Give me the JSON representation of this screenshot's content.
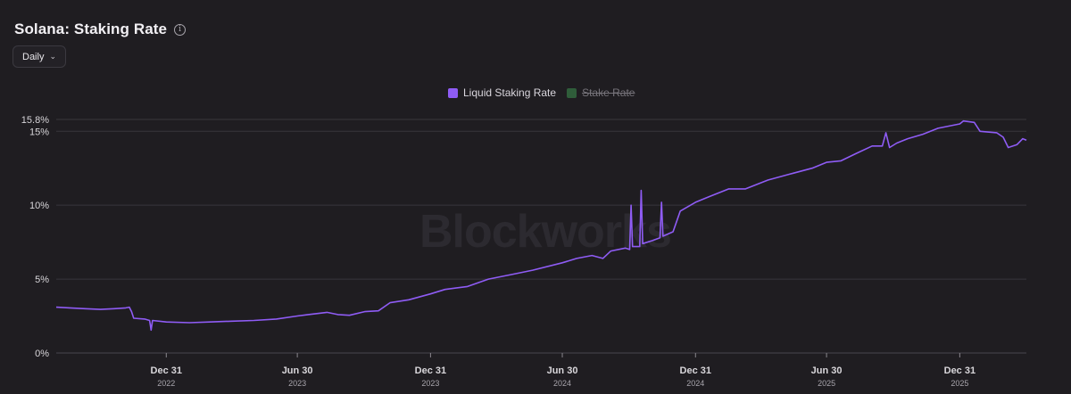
{
  "header": {
    "title": "Solana: Staking Rate",
    "info_icon": "info-circle-icon"
  },
  "controls": {
    "interval_label": "Daily",
    "interval_icon": "chevron-down-icon"
  },
  "watermark": "Blockworks",
  "colors": {
    "background": "#1f1d21",
    "liquid": "#8f5cf5",
    "stake": "#2f5d3a",
    "grid": "#38363c",
    "axis_text": "#d8d6da"
  },
  "chart_data": {
    "type": "line",
    "title": "Solana: Staking Rate",
    "legend_position": "top-center",
    "grid": true,
    "y_unit": "%",
    "ylim": [
      0,
      15.8
    ],
    "y_ticks": [
      {
        "value": 0,
        "label": "0%"
      },
      {
        "value": 5,
        "label": "5%"
      },
      {
        "value": 10,
        "label": "10%"
      },
      {
        "value": 15,
        "label": "15%"
      },
      {
        "value": 15.8,
        "label": "15.8%"
      }
    ],
    "x_ticks": [
      {
        "date": "2022-12-31",
        "label": "Dec 31",
        "year": "2022"
      },
      {
        "date": "2023-06-30",
        "label": "Jun 30",
        "year": "2023"
      },
      {
        "date": "2023-12-31",
        "label": "Dec 31",
        "year": "2023"
      },
      {
        "date": "2024-06-30",
        "label": "Jun 30",
        "year": "2024"
      },
      {
        "date": "2024-12-31",
        "label": "Dec 31",
        "year": "2024"
      },
      {
        "date": "2025-06-30",
        "label": "Jun 30",
        "year": "2025"
      },
      {
        "date": "2025-12-31",
        "label": "Dec 31",
        "year": "2025"
      }
    ],
    "series": [
      {
        "name": "Liquid Staking Rate",
        "visible": true,
        "color": "#8f5cf5",
        "points": [
          [
            "2022-08-01",
            3.1
          ],
          [
            "2022-08-20",
            3.05
          ],
          [
            "2022-09-10",
            3.0
          ],
          [
            "2022-10-01",
            2.95
          ],
          [
            "2022-10-20",
            3.0
          ],
          [
            "2022-11-05",
            3.05
          ],
          [
            "2022-11-10",
            3.1
          ],
          [
            "2022-11-13",
            2.8
          ],
          [
            "2022-11-16",
            2.35
          ],
          [
            "2022-12-01",
            2.3
          ],
          [
            "2022-12-08",
            2.2
          ],
          [
            "2022-12-10",
            1.55
          ],
          [
            "2022-12-12",
            2.2
          ],
          [
            "2022-12-31",
            2.1
          ],
          [
            "2023-02-01",
            2.05
          ],
          [
            "2023-03-01",
            2.1
          ],
          [
            "2023-04-01",
            2.15
          ],
          [
            "2023-05-01",
            2.2
          ],
          [
            "2023-06-01",
            2.3
          ],
          [
            "2023-06-30",
            2.5
          ],
          [
            "2023-07-15",
            2.6
          ],
          [
            "2023-08-10",
            2.75
          ],
          [
            "2023-08-25",
            2.6
          ],
          [
            "2023-09-10",
            2.55
          ],
          [
            "2023-10-01",
            2.8
          ],
          [
            "2023-10-20",
            2.85
          ],
          [
            "2023-11-05",
            3.4
          ],
          [
            "2023-12-01",
            3.6
          ],
          [
            "2023-12-31",
            4.0
          ],
          [
            "2024-01-20",
            4.3
          ],
          [
            "2024-02-20",
            4.5
          ],
          [
            "2024-03-20",
            5.0
          ],
          [
            "2024-04-20",
            5.3
          ],
          [
            "2024-05-20",
            5.6
          ],
          [
            "2024-06-30",
            6.1
          ],
          [
            "2024-07-20",
            6.4
          ],
          [
            "2024-08-10",
            6.6
          ],
          [
            "2024-08-25",
            6.4
          ],
          [
            "2024-09-05",
            6.9
          ],
          [
            "2024-09-25",
            7.1
          ],
          [
            "2024-10-01",
            7.0
          ],
          [
            "2024-10-03",
            10.0
          ],
          [
            "2024-10-05",
            7.2
          ],
          [
            "2024-10-15",
            7.2
          ],
          [
            "2024-10-17",
            11.0
          ],
          [
            "2024-10-19",
            7.4
          ],
          [
            "2024-11-01",
            7.6
          ],
          [
            "2024-11-12",
            7.8
          ],
          [
            "2024-11-14",
            10.2
          ],
          [
            "2024-11-16",
            7.9
          ],
          [
            "2024-11-30",
            8.2
          ],
          [
            "2024-12-10",
            9.6
          ],
          [
            "2024-12-31",
            10.2
          ],
          [
            "2025-01-20",
            10.6
          ],
          [
            "2025-02-15",
            11.1
          ],
          [
            "2025-03-10",
            11.1
          ],
          [
            "2025-04-10",
            11.7
          ],
          [
            "2025-05-10",
            12.1
          ],
          [
            "2025-06-10",
            12.5
          ],
          [
            "2025-06-30",
            12.9
          ],
          [
            "2025-07-20",
            13.0
          ],
          [
            "2025-08-10",
            13.5
          ],
          [
            "2025-09-01",
            14.0
          ],
          [
            "2025-09-15",
            14.0
          ],
          [
            "2025-09-20",
            14.9
          ],
          [
            "2025-09-25",
            13.9
          ],
          [
            "2025-10-05",
            14.2
          ],
          [
            "2025-10-20",
            14.5
          ],
          [
            "2025-11-10",
            14.8
          ],
          [
            "2025-12-01",
            15.2
          ],
          [
            "2025-12-31",
            15.5
          ],
          [
            "2026-01-05",
            15.7
          ],
          [
            "2026-01-20",
            15.6
          ],
          [
            "2026-01-28",
            15.0
          ],
          [
            "2026-02-20",
            14.9
          ],
          [
            "2026-03-01",
            14.6
          ],
          [
            "2026-03-08",
            13.9
          ],
          [
            "2026-03-20",
            14.1
          ],
          [
            "2026-03-28",
            14.5
          ],
          [
            "2026-04-02",
            14.4
          ]
        ]
      },
      {
        "name": "Stake Rate",
        "visible": false,
        "color": "#2f5d3a",
        "points": []
      }
    ]
  }
}
